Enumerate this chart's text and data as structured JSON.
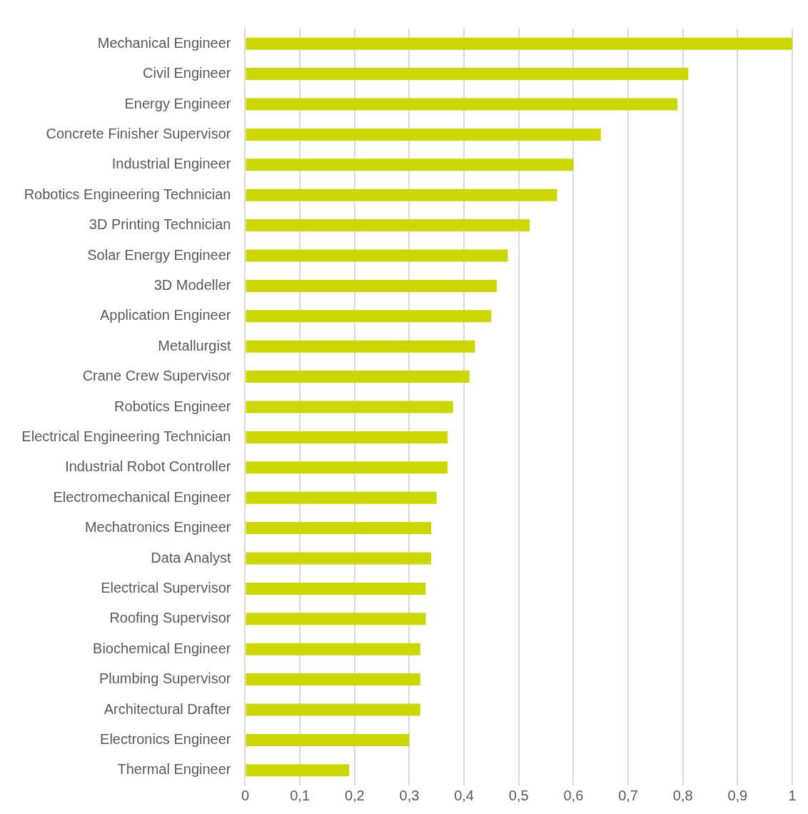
{
  "chart_data": {
    "type": "bar",
    "orientation": "horizontal",
    "categories": [
      "Mechanical Engineer",
      "Civil Engineer",
      "Energy Engineer",
      "Concrete Finisher Supervisor",
      "Industrial Engineer",
      "Robotics Engineering Technician",
      "3D Printing Technician",
      "Solar Energy Engineer",
      "3D Modeller",
      "Application Engineer",
      "Metallurgist",
      "Crane Crew Supervisor",
      "Robotics Engineer",
      "Electrical Engineering Technician",
      "Industrial Robot Controller",
      "Electromechanical Engineer",
      "Mechatronics Engineer",
      "Data Analyst",
      "Electrical Supervisor",
      "Roofing Supervisor",
      "Biochemical Engineer",
      "Plumbing Supervisor",
      "Architectural Drafter",
      "Electronics Engineer",
      "Thermal Engineer"
    ],
    "values": [
      1.0,
      0.81,
      0.79,
      0.65,
      0.6,
      0.57,
      0.52,
      0.48,
      0.46,
      0.45,
      0.42,
      0.41,
      0.38,
      0.37,
      0.37,
      0.35,
      0.34,
      0.34,
      0.33,
      0.33,
      0.32,
      0.32,
      0.32,
      0.3,
      0.19
    ],
    "color": "#ccd600",
    "xlim": [
      0,
      1
    ],
    "xticks": [
      0,
      {
        "value": 0.1,
        "label": "0,1"
      },
      {
        "value": 0.2,
        "label": "0,2"
      },
      {
        "value": 0.3,
        "label": "0,3"
      },
      {
        "value": 0.4,
        "label": "0,4"
      },
      {
        "value": 0.5,
        "label": "0,5"
      },
      {
        "value": 0.6,
        "label": "0,6"
      },
      {
        "value": 0.7,
        "label": "0,7"
      },
      {
        "value": 0.8,
        "label": "0,8"
      },
      {
        "value": 0.9,
        "label": "0,9"
      },
      1
    ],
    "grid": "x",
    "legend": false
  }
}
